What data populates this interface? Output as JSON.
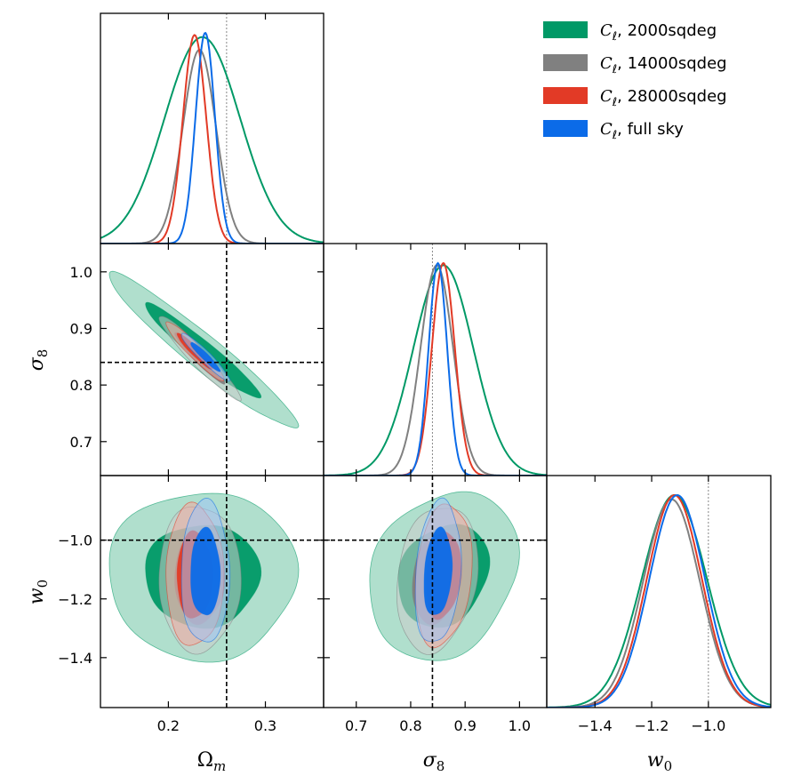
{
  "chart_data": {
    "type": "corner",
    "parameters": [
      {
        "id": "Om",
        "label": "Ω",
        "subscript": "m",
        "range": [
          0.13,
          0.36
        ],
        "ticks": [
          "0.2",
          "0.3"
        ],
        "fiducial": 0.26
      },
      {
        "id": "s8",
        "label": "σ",
        "subscript": "8",
        "range": [
          0.64,
          1.05
        ],
        "ticks": [
          "0.7",
          "0.8",
          "0.9",
          "1.0"
        ],
        "fiducial": 0.84
      },
      {
        "id": "w0",
        "label": "w",
        "subscript": "0",
        "range": [
          -1.57,
          -0.78
        ],
        "ticks": [
          "−1.4",
          "−1.2",
          "−1.0"
        ],
        "fiducial": -1.0
      }
    ],
    "series": [
      {
        "name": "C_ℓ, 2000sqdeg",
        "name_base": "C",
        "name_sub": "ℓ",
        "name_rest": ", 2000sqdeg",
        "color": "#009966",
        "fill1": "#009966",
        "fill2": "#8fd1b8",
        "mean": {
          "Om": 0.235,
          "s8": 0.86,
          "w0": -1.12
        },
        "sd": {
          "Om": 0.039,
          "s8": 0.055,
          "w0": 0.115
        },
        "rho": {
          "Om_s8": -0.96,
          "Om_w0": 0.0,
          "s8_w0": 0.2
        },
        "peaks": [
          0.98,
          0.99,
          1.0
        ]
      },
      {
        "name": "C_ℓ, 14000sqdeg",
        "name_base": "C",
        "name_sub": "ℓ",
        "name_rest": ", 14000sqdeg",
        "color": "#808080",
        "fill1": "#808080",
        "fill2": "#cccccc",
        "mean": {
          "Om": 0.232,
          "s8": 0.848,
          "w0": -1.13
        },
        "sd": {
          "Om": 0.017,
          "s8": 0.03,
          "w0": 0.1
        },
        "rho": {
          "Om_s8": -0.96,
          "Om_w0": 0.0,
          "s8_w0": 0.2
        },
        "peaks": [
          0.92,
          0.99,
          0.98
        ]
      },
      {
        "name": "C_ℓ, 28000sqdeg",
        "name_base": "C",
        "name_sub": "ℓ",
        "name_rest": ", 28000sqdeg",
        "color": "#e23a26",
        "fill1": "#e23a26",
        "fill2": "#f3aaa0",
        "mean": {
          "Om": 0.227,
          "s8": 0.86,
          "w0": -1.12
        },
        "sd": {
          "Om": 0.012,
          "s8": 0.021,
          "w0": 0.097
        },
        "rho": {
          "Om_s8": -0.95,
          "Om_w0": 0.0,
          "s8_w0": 0.2
        },
        "peaks": [
          0.99,
          1.0,
          1.0
        ]
      },
      {
        "name": "C_ℓ, full sky",
        "name_base": "C",
        "name_sub": "ℓ",
        "name_rest": ", full sky",
        "color": "#0b6be8",
        "fill1": "#0b6be8",
        "fill2": "#9ec4f5",
        "mean": {
          "Om": 0.238,
          "s8": 0.85,
          "w0": -1.11
        },
        "sd": {
          "Om": 0.01,
          "s8": 0.017,
          "w0": 0.098
        },
        "rho": {
          "Om_s8": -0.95,
          "Om_w0": 0.0,
          "s8_w0": 0.2
        },
        "peaks": [
          1.0,
          1.0,
          1.0
        ]
      }
    ],
    "legend_position": "top-right",
    "grid": false
  }
}
